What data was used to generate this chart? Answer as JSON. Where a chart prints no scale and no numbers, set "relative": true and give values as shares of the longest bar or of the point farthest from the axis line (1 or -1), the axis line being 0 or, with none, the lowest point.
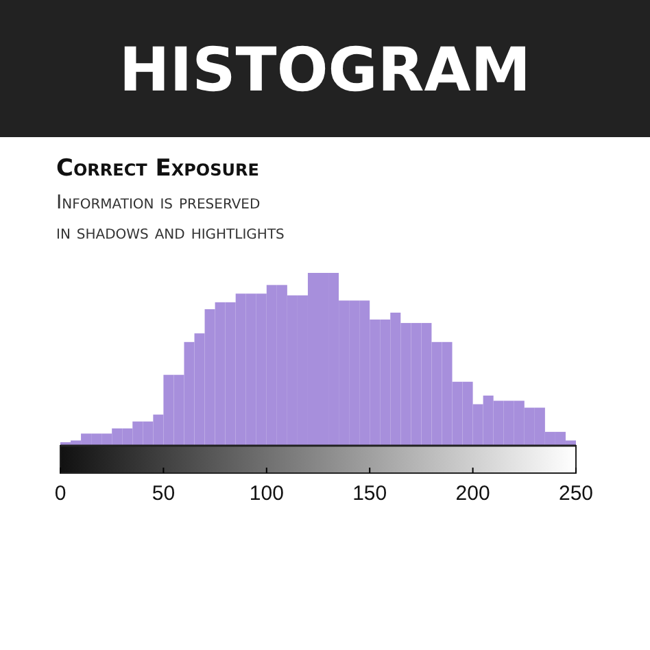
{
  "chart_data": {
    "type": "bar",
    "title": "HISTOGRAM",
    "subtitle": "Correct Exposure",
    "annotations": [
      "Information is preserved in shadows and hightlights"
    ],
    "relative": true,
    "color": "#a78fdc",
    "x": [
      2.5,
      7.5,
      12.5,
      17.5,
      22.5,
      27.5,
      32.5,
      37.5,
      42.5,
      47.5,
      52.5,
      57.5,
      62.5,
      67.5,
      72.5,
      77.5,
      82.5,
      87.5,
      92.5,
      97.5,
      102.5,
      107.5,
      112.5,
      117.5,
      122.5,
      127.5,
      132.5,
      137.5,
      142.5,
      147.5,
      152.5,
      157.5,
      162.5,
      167.5,
      172.5,
      177.5,
      182.5,
      187.5,
      192.5,
      197.5,
      202.5,
      207.5,
      212.5,
      217.5,
      222.5,
      227.5,
      232.5,
      237.5,
      242.5,
      247.5
    ],
    "values": [
      0.02,
      0.03,
      0.07,
      0.07,
      0.07,
      0.1,
      0.1,
      0.14,
      0.14,
      0.18,
      0.41,
      0.41,
      0.6,
      0.65,
      0.79,
      0.83,
      0.83,
      0.88,
      0.88,
      0.88,
      0.93,
      0.93,
      0.87,
      0.87,
      1,
      1,
      1,
      0.84,
      0.84,
      0.84,
      0.73,
      0.73,
      0.77,
      0.71,
      0.71,
      0.71,
      0.6,
      0.6,
      0.37,
      0.37,
      0.24,
      0.29,
      0.26,
      0.26,
      0.26,
      0.22,
      0.22,
      0.08,
      0.08,
      0.03
    ],
    "xlim": [
      0,
      250
    ],
    "xticks": [
      0,
      50,
      100,
      150,
      200,
      250
    ],
    "grid": false
  }
}
